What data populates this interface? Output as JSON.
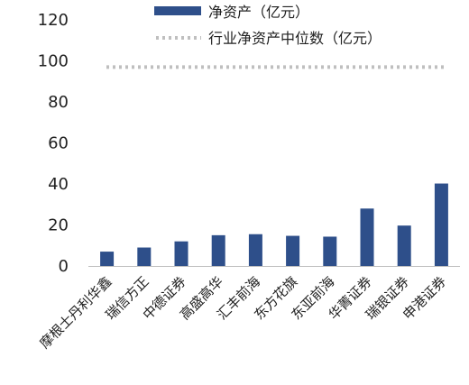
{
  "chart_data": {
    "type": "bar",
    "title": "",
    "xlabel": "",
    "ylabel": "",
    "categories": [
      "摩根士丹利华鑫",
      "瑞信方正",
      "中德证券",
      "高盛高华",
      "汇丰前海",
      "东方花旗",
      "东亚前海",
      "华菁证券",
      "瑞银证券",
      "申港证券"
    ],
    "series": [
      {
        "name": "净资产（亿元）",
        "values": [
          7,
          9,
          12,
          15,
          15.5,
          14.7,
          14.3,
          28,
          19.7,
          40.2
        ],
        "color": "#2e4f8a"
      }
    ],
    "reference_line": {
      "name": "行业净资产中位数（亿元）",
      "value": 97,
      "color": "#bfbfbf",
      "style": "dotted"
    },
    "ylim": [
      0,
      120
    ],
    "yticks": [
      "0",
      "20",
      "40",
      "60",
      "80",
      "100",
      "120"
    ],
    "grid": false,
    "legend": "top"
  }
}
